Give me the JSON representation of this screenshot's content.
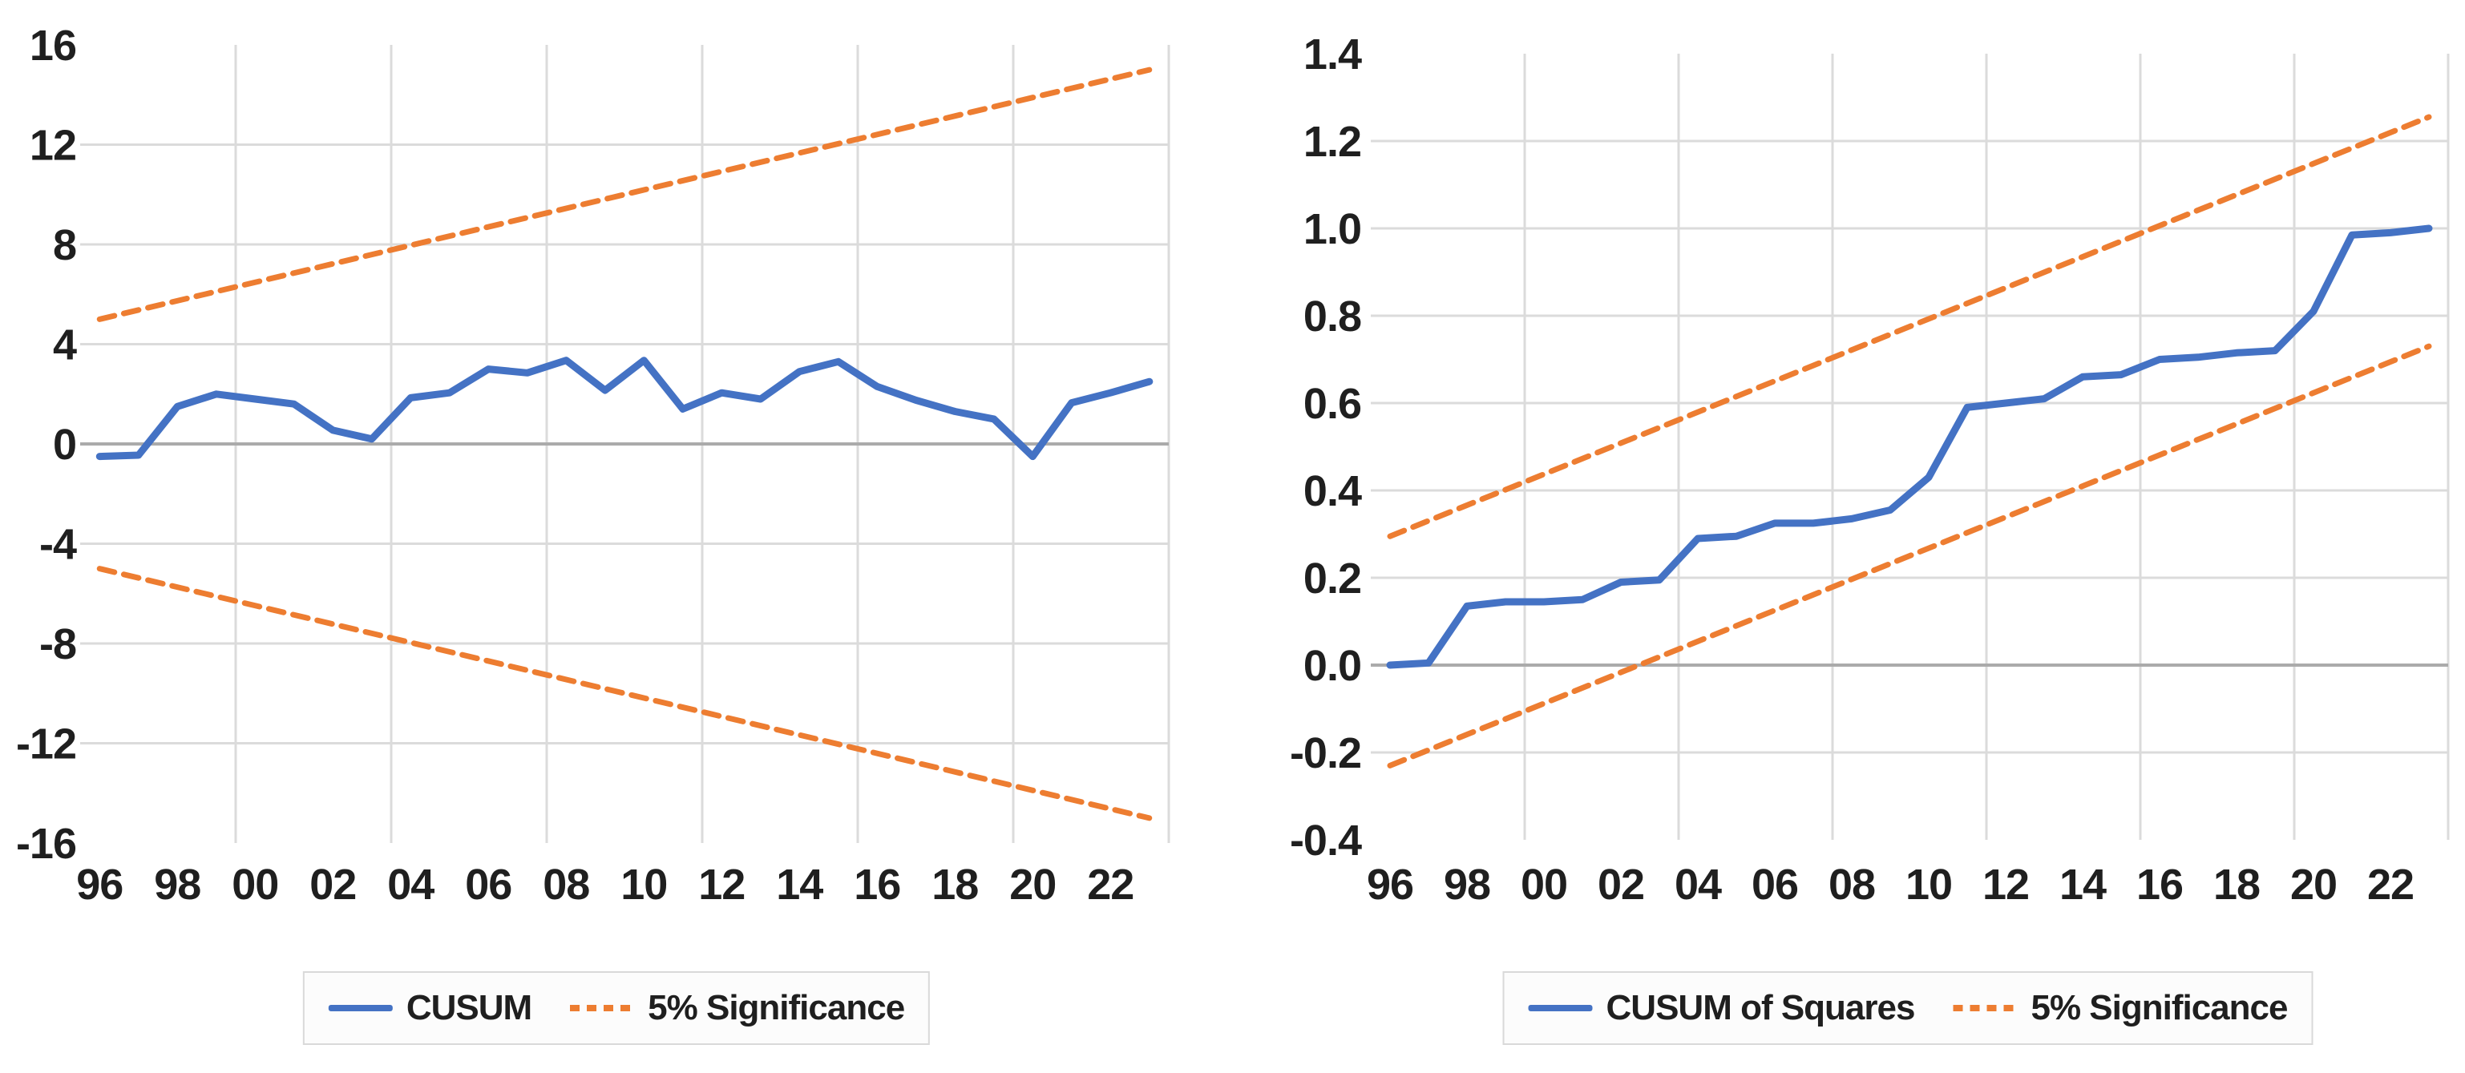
{
  "figure": {
    "background": "#FFFFFF",
    "description": "Two line charts: CUSUM and CUSUM of Squares stability tests with 5% significance bounds"
  },
  "colors": {
    "cusum_line": "#4472C4",
    "significance_line": "#ED7D31",
    "gridline": "#DBDBDB",
    "zero_axis": "#ABABAB",
    "axis_text": "#1F1F1F",
    "legend_border": "#D9D9D9",
    "legend_bg": "#FCFCFC"
  },
  "chart_data": [
    {
      "id": "cusum",
      "type": "line",
      "title": "",
      "xlabel": "",
      "ylabel": "",
      "x": [
        1996,
        1997,
        1998,
        1999,
        2000,
        2001,
        2002,
        2003,
        2004,
        2005,
        2006,
        2007,
        2008,
        2009,
        2010,
        2011,
        2012,
        2013,
        2014,
        2015,
        2016,
        2017,
        2018,
        2019,
        2020,
        2021,
        2022,
        2023
      ],
      "x_tick_labels": [
        "96",
        "98",
        "00",
        "02",
        "04",
        "06",
        "08",
        "10",
        "12",
        "14",
        "16",
        "18",
        "20",
        "22"
      ],
      "ylim": [
        -16,
        16
      ],
      "y_ticks": [
        16,
        12,
        8,
        4,
        0,
        -4,
        -8,
        -12,
        -16
      ],
      "y_tick_labels": [
        "16",
        "12",
        "8",
        "4",
        "0",
        "-4",
        "-8",
        "-12",
        "-16"
      ],
      "grid": true,
      "legend_position": "bottom",
      "series": [
        {
          "name": "CUSUM",
          "style": "solid",
          "color": "#4472C4",
          "values": [
            -0.5,
            -0.45,
            1.5,
            2.0,
            1.8,
            1.6,
            0.55,
            0.2,
            1.85,
            2.05,
            3.0,
            2.85,
            3.35,
            2.15,
            3.35,
            1.4,
            2.05,
            1.8,
            2.9,
            3.3,
            2.3,
            1.75,
            1.3,
            1.0,
            -0.5,
            1.65,
            2.05,
            2.5
          ]
        },
        {
          "name": "5% Significance",
          "style": "dashed",
          "color": "#ED7D31",
          "upper": {
            "start": 5.0,
            "end": 15.0
          },
          "lower": {
            "start": -5.0,
            "end": -15.0
          }
        }
      ]
    },
    {
      "id": "cusum-of-squares",
      "type": "line",
      "title": "",
      "xlabel": "",
      "ylabel": "",
      "x": [
        1996,
        1997,
        1998,
        1999,
        2000,
        2001,
        2002,
        2003,
        2004,
        2005,
        2006,
        2007,
        2008,
        2009,
        2010,
        2011,
        2012,
        2013,
        2014,
        2015,
        2016,
        2017,
        2018,
        2019,
        2020,
        2021,
        2022,
        2023
      ],
      "x_tick_labels": [
        "96",
        "98",
        "00",
        "02",
        "04",
        "06",
        "08",
        "10",
        "12",
        "14",
        "16",
        "18",
        "20",
        "22"
      ],
      "ylim": [
        -0.4,
        1.4
      ],
      "y_ticks": [
        1.4,
        1.2,
        1.0,
        0.8,
        0.6,
        0.4,
        0.2,
        0.0,
        -0.2,
        -0.4
      ],
      "y_tick_labels": [
        "1.4",
        "1.2",
        "1.0",
        "0.8",
        "0.6",
        "0.4",
        "0.2",
        "0.0",
        "-0.2",
        "-0.4"
      ],
      "grid": true,
      "legend_position": "bottom",
      "series": [
        {
          "name": "CUSUM of Squares",
          "style": "solid",
          "color": "#4472C4",
          "values": [
            0.0,
            0.005,
            0.135,
            0.145,
            0.145,
            0.15,
            0.19,
            0.195,
            0.29,
            0.295,
            0.325,
            0.325,
            0.335,
            0.355,
            0.43,
            0.59,
            0.6,
            0.61,
            0.66,
            0.665,
            0.7,
            0.705,
            0.715,
            0.72,
            0.81,
            0.985,
            0.99,
            1.0
          ]
        },
        {
          "name": "5% Significance",
          "style": "dashed",
          "color": "#ED7D31",
          "upper": {
            "start": 0.295,
            "end": 1.255
          },
          "lower": {
            "start": -0.23,
            "end": 0.73
          }
        }
      ]
    }
  ]
}
